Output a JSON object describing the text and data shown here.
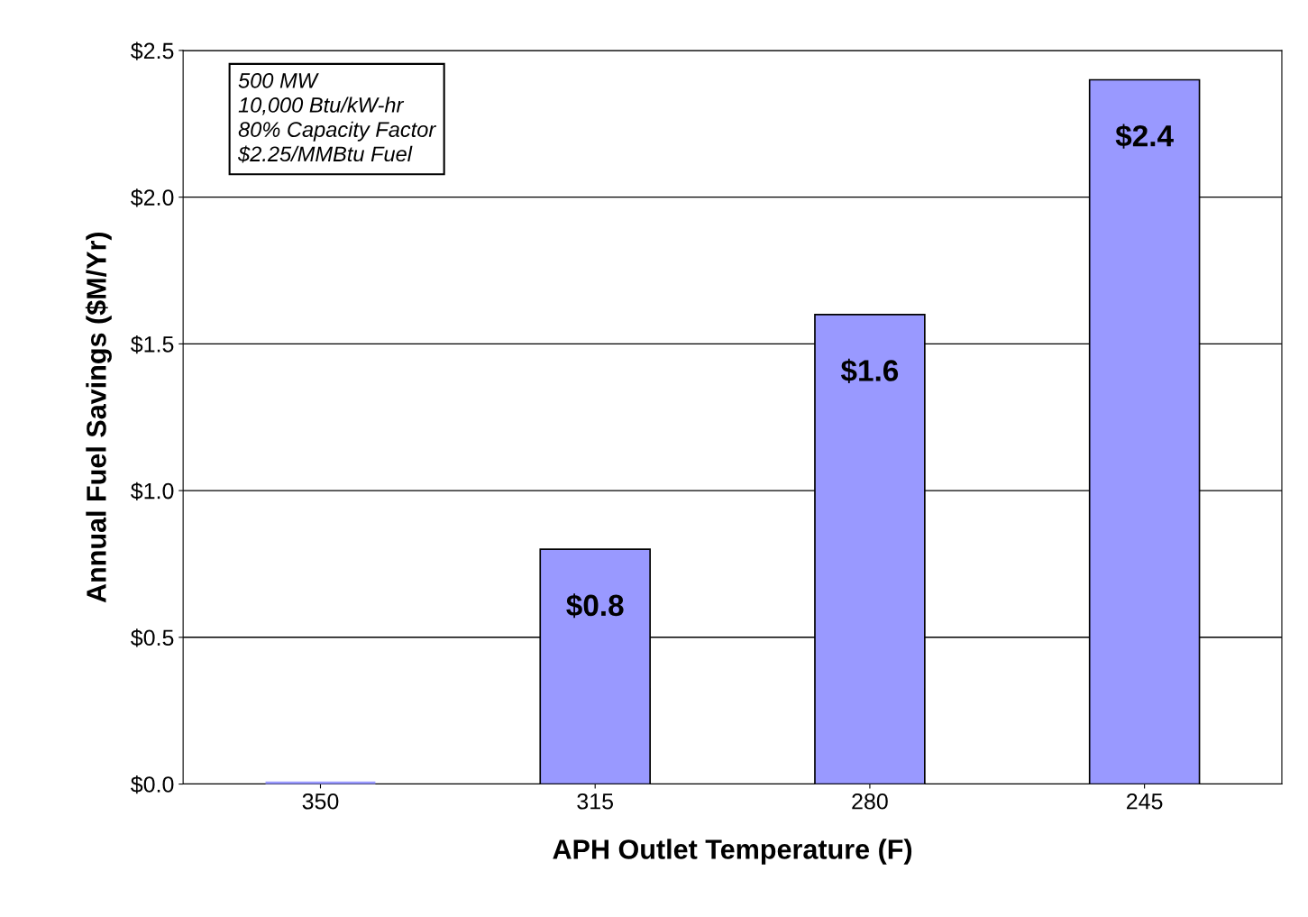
{
  "chart_data": {
    "type": "bar",
    "xlabel": "APH Outlet Temperature (F)",
    "ylabel": "Annual Fuel Savings ($M/Yr)",
    "categories": [
      "350",
      "315",
      "280",
      "245"
    ],
    "values": [
      0,
      0.8,
      1.6,
      2.4
    ],
    "value_labels": [
      null,
      "$0.8",
      "$1.6",
      "$2.4"
    ],
    "color": "#9999ff",
    "ylim": [
      0,
      2.5
    ],
    "yticks": [
      {
        "value": 0,
        "label": "$0.0"
      },
      {
        "value": 0.5,
        "label": "$0.5"
      },
      {
        "value": 1.0,
        "label": "$1.0"
      },
      {
        "value": 1.5,
        "label": "$1.5"
      },
      {
        "value": 2.0,
        "label": "$2.0"
      },
      {
        "value": 2.5,
        "label": "$2.5"
      }
    ],
    "grid": "y",
    "legend": false,
    "annotations": [
      "500 MW\n10,000 Btu/kW-hr\n80% Capacity Factor\n$2.25/MMBtu Fuel"
    ]
  }
}
